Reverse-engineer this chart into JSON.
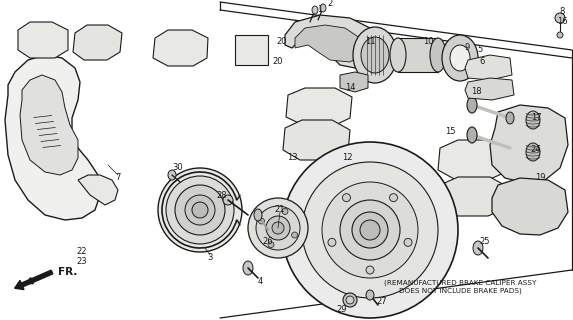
{
  "bg_color": "#ffffff",
  "line_color": "#1a1a1a",
  "note_text": "(REMANUFACTURED BRAKE CALIPER ASSY\nDOES NOT INCLUDE BRAKE PADS)",
  "fr_label": "FR.",
  "figsize": [
    5.73,
    3.2
  ],
  "dpi": 100
}
